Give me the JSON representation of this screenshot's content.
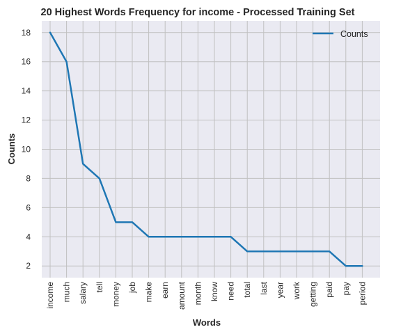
{
  "chart_data": {
    "type": "line",
    "title": "20 Highest Words Frequency for income - Processed Training Set",
    "xlabel": "Words",
    "ylabel": "Counts",
    "categories": [
      "income",
      "much",
      "salary",
      "tell",
      "money",
      "job",
      "make",
      "earn",
      "amount",
      "month",
      "know",
      "need",
      "total",
      "last",
      "year",
      "work",
      "getting",
      "paid",
      "pay",
      "period"
    ],
    "series": [
      {
        "name": "Counts",
        "values": [
          18,
          16,
          9,
          8,
          5,
          5,
          4,
          4,
          4,
          4,
          4,
          4,
          3,
          3,
          3,
          3,
          3,
          3,
          2,
          2
        ],
        "color": "#1f77b4"
      }
    ],
    "ylim": [
      1.2,
      18.8
    ],
    "yticks": [
      2,
      4,
      6,
      8,
      10,
      12,
      14,
      16,
      18
    ],
    "grid": true,
    "legend": "top-right",
    "background": "#eaeaf2",
    "grid_color": "#c0c0c0"
  }
}
